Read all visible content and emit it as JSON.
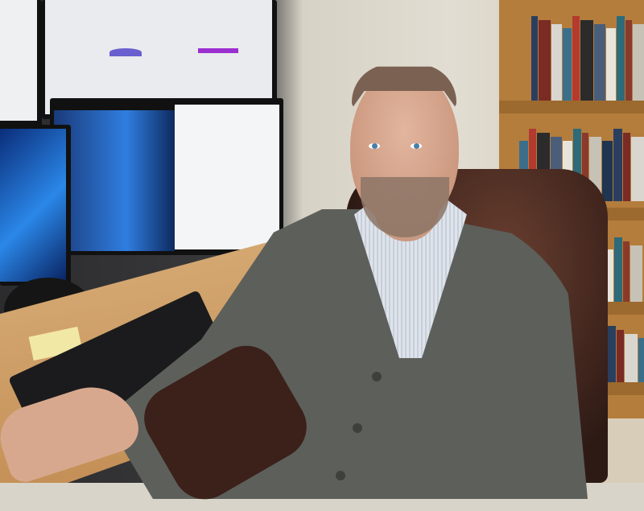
{
  "scene": {
    "colors": {
      "wall": "#d9d4c9",
      "bookshelf": "#b47d3c",
      "desk": "#c89a63",
      "cardigan": "#5d5f5a",
      "chair": "#3b211a",
      "screen_blue": "#1b6fd0"
    },
    "book_colors": [
      "#2a3f5f",
      "#7a2b24",
      "#d9d6cf",
      "#3a6f8c",
      "#b33a2e",
      "#2b2b2b",
      "#4a5e7a",
      "#e8e4da",
      "#2d6a7a",
      "#8a3a2a",
      "#c7c2b6",
      "#1f3550"
    ]
  }
}
